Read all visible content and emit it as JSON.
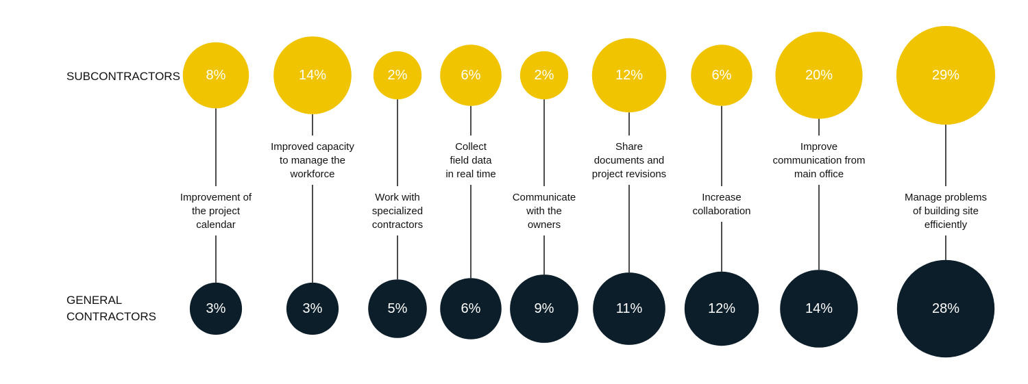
{
  "chart_data": {
    "type": "bubble",
    "rows": [
      "SUBCONTRACTORS",
      "GENERAL CONTRACTORS"
    ],
    "categories": [
      [
        "Improvement of",
        "the project",
        "calendar"
      ],
      [
        "Improved capacity",
        "to manage the",
        "workforce"
      ],
      [
        "Work with",
        "specialized",
        "contractors"
      ],
      [
        "Collect",
        "field data",
        "in real time"
      ],
      [
        "Communicate",
        "with the",
        "owners"
      ],
      [
        "Share",
        "documents and",
        "project revisions"
      ],
      [
        "Increase",
        "collaboration"
      ],
      [
        "Improve",
        "communication from",
        "main office"
      ],
      [
        "Manage problems",
        "of building site",
        "efficiently"
      ]
    ],
    "series": [
      {
        "name": "SUBCONTRACTORS",
        "values": [
          8,
          14,
          2,
          6,
          2,
          12,
          6,
          20,
          29
        ],
        "color": "#f0c400"
      },
      {
        "name": "GENERAL CONTRACTORS",
        "values": [
          3,
          3,
          5,
          6,
          9,
          11,
          12,
          14,
          28
        ],
        "color": "#0c1e2a"
      }
    ],
    "value_suffix": "%",
    "line_color": "#111111"
  }
}
